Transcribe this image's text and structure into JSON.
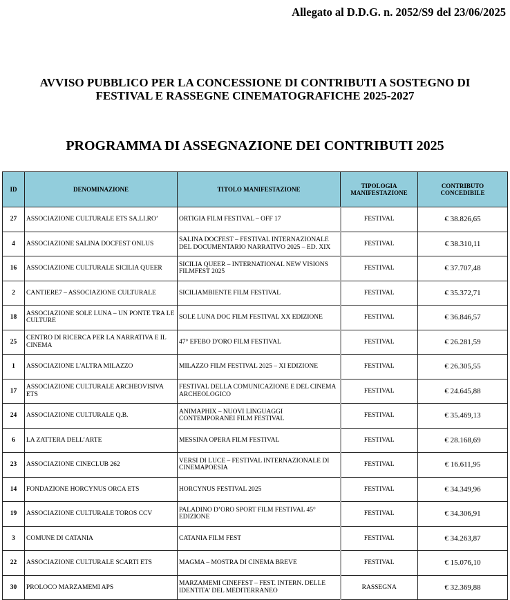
{
  "header": {
    "allegato": "Allegato al D.D.G. n. 2052/S9 del 23/06/2025",
    "title_line1": "AVVISO PUBBLICO PER LA CONCESSIONE DI CONTRIBUTI A SOSTEGNO DI",
    "title_line2": "FESTIVAL E RASSEGNE CINEMATOGRAFICHE 2025-2027",
    "subtitle": "PROGRAMMA DI ASSEGNAZIONE DEI CONTRIBUTI 2025"
  },
  "colors": {
    "header_bg": "#92cddc"
  },
  "table": {
    "columns": [
      "ID",
      "DENOMINAZIONE",
      "TITOLO MANIFESTAZIONE",
      "TIPOLOGIA MANIFESTAZIONE",
      "CONTRIBUTO CONCEDIBILE"
    ],
    "rows": [
      {
        "id": "27",
        "den": "ASSOCIAZIONE CULTURALE ETS SA.LI.RO’",
        "tit": "ORTIGIA FILM FESTIVAL – OFF 17",
        "tip": "FESTIVAL",
        "val": "€ 38.826,65"
      },
      {
        "id": "4",
        "den": "ASSOCIAZIONE SALINA DOCFEST ONLUS",
        "tit": "SALINA DOCFEST – FESTIVAL INTERNAZIONALE DEL DOCUMENTARIO NARRATIVO 2025 – ED. XIX",
        "tip": "FESTIVAL",
        "val": "€ 38.310,11"
      },
      {
        "id": "16",
        "den": "ASSOCIAZIONE CULTURALE SICILIA QUEER",
        "tit": "SICILIA QUEER – INTERNATIONAL NEW VISIONS FILMFEST 2025",
        "tip": "FESTIVAL",
        "val": "€ 37.707,48"
      },
      {
        "id": "2",
        "den": "CANTIERE7 – ASSOCIAZIONE CULTURALE",
        "tit": "SICILIAMBIENTE FILM FESTIVAL",
        "tip": "FESTIVAL",
        "val": "€ 35.372,71"
      },
      {
        "id": "18",
        "den": "ASSOCIAZIONE SOLE LUNA – UN PONTE TRA LE CULTURE",
        "tit": "SOLE LUNA DOC FILM FESTIVAL XX EDIZIONE",
        "tip": "FESTIVAL",
        "val": "€ 36.846,57"
      },
      {
        "id": "25",
        "den": "CENTRO DI RICERCA PER LA NARRATIVA E IL CINEMA",
        "tit": "47° EFEBO D'ORO FILM FESTIVAL",
        "tip": "FESTIVAL",
        "val": "€ 26.281,59"
      },
      {
        "id": "1",
        "den": "ASSOCIAZIONE L'ALTRA MILAZZO",
        "tit": "MILAZZO FILM FESTIVAL 2025 – XI EDIZIONE",
        "tip": "FESTIVAL",
        "val": "€ 26.305,55"
      },
      {
        "id": "17",
        "den": "ASSOCIAZIONE CULTURALE  ARCHEOVISIVA  ETS",
        "tit": "FESTIVAL DELLA COMUNICAZIONE E DEL CINEMA ARCHEOLOGICO",
        "tip": "FESTIVAL",
        "val": "€ 24.645,88"
      },
      {
        "id": "24",
        "den": "ASSOCIAZIONE CULTURALE Q.B.",
        "tit": "ANIMAPHIX – NUOVI LINGUAGGI CONTEMPORANEI FILM FESTIVAL",
        "tip": "FESTIVAL",
        "val": "€ 35.469,13"
      },
      {
        "id": "6",
        "den": "LA ZATTERA DELL’ARTE",
        "tit": "MESSINA OPERA FILM FESTIVAL",
        "tip": "FESTIVAL",
        "val": "€ 28.168,69"
      },
      {
        "id": "23",
        "den": "ASSOCIAZIONE CINECLUB 262",
        "tit": "VERSI DI LUCE – FESTIVAL INTERNAZIONALE DI CINEMAPOESIA",
        "tip": "FESTIVAL",
        "val": "€ 16.611,95"
      },
      {
        "id": "14",
        "den": "FONDAZIONE HORCYNUS ORCA ETS",
        "tit": "HORCYNUS FESTIVAL 2025",
        "tip": "FESTIVAL",
        "val": "€ 34.349,96"
      },
      {
        "id": "19",
        "den": "ASSOCIAZIONE CULTURALE TOROS CCV",
        "tit": "PALADINO D’ORO SPORT FILM FESTIVAL 45° EDIZIONE",
        "tip": "FESTIVAL",
        "val": "€ 34.306,91"
      },
      {
        "id": "3",
        "den": "COMUNE DI CATANIA",
        "tit": "CATANIA FILM FEST",
        "tip": "FESTIVAL",
        "val": "€ 34.263,87"
      },
      {
        "id": "22",
        "den": "ASSOCIAZIONE CULTURALE SCARTI ETS",
        "tit": "MAGMA – MOSTRA DI CINEMA BREVE",
        "tip": "FESTIVAL",
        "val": "€ 15.076,10"
      },
      {
        "id": "30",
        "den": "PROLOCO MARZAMEMI APS",
        "tit": "MARZAMEMI CINEFEST – FEST. INTERN. DELLE IDENTITA’ DEL MEDITERRANEO",
        "tip": "RASSEGNA",
        "val": "€ 32.369,88"
      }
    ]
  }
}
